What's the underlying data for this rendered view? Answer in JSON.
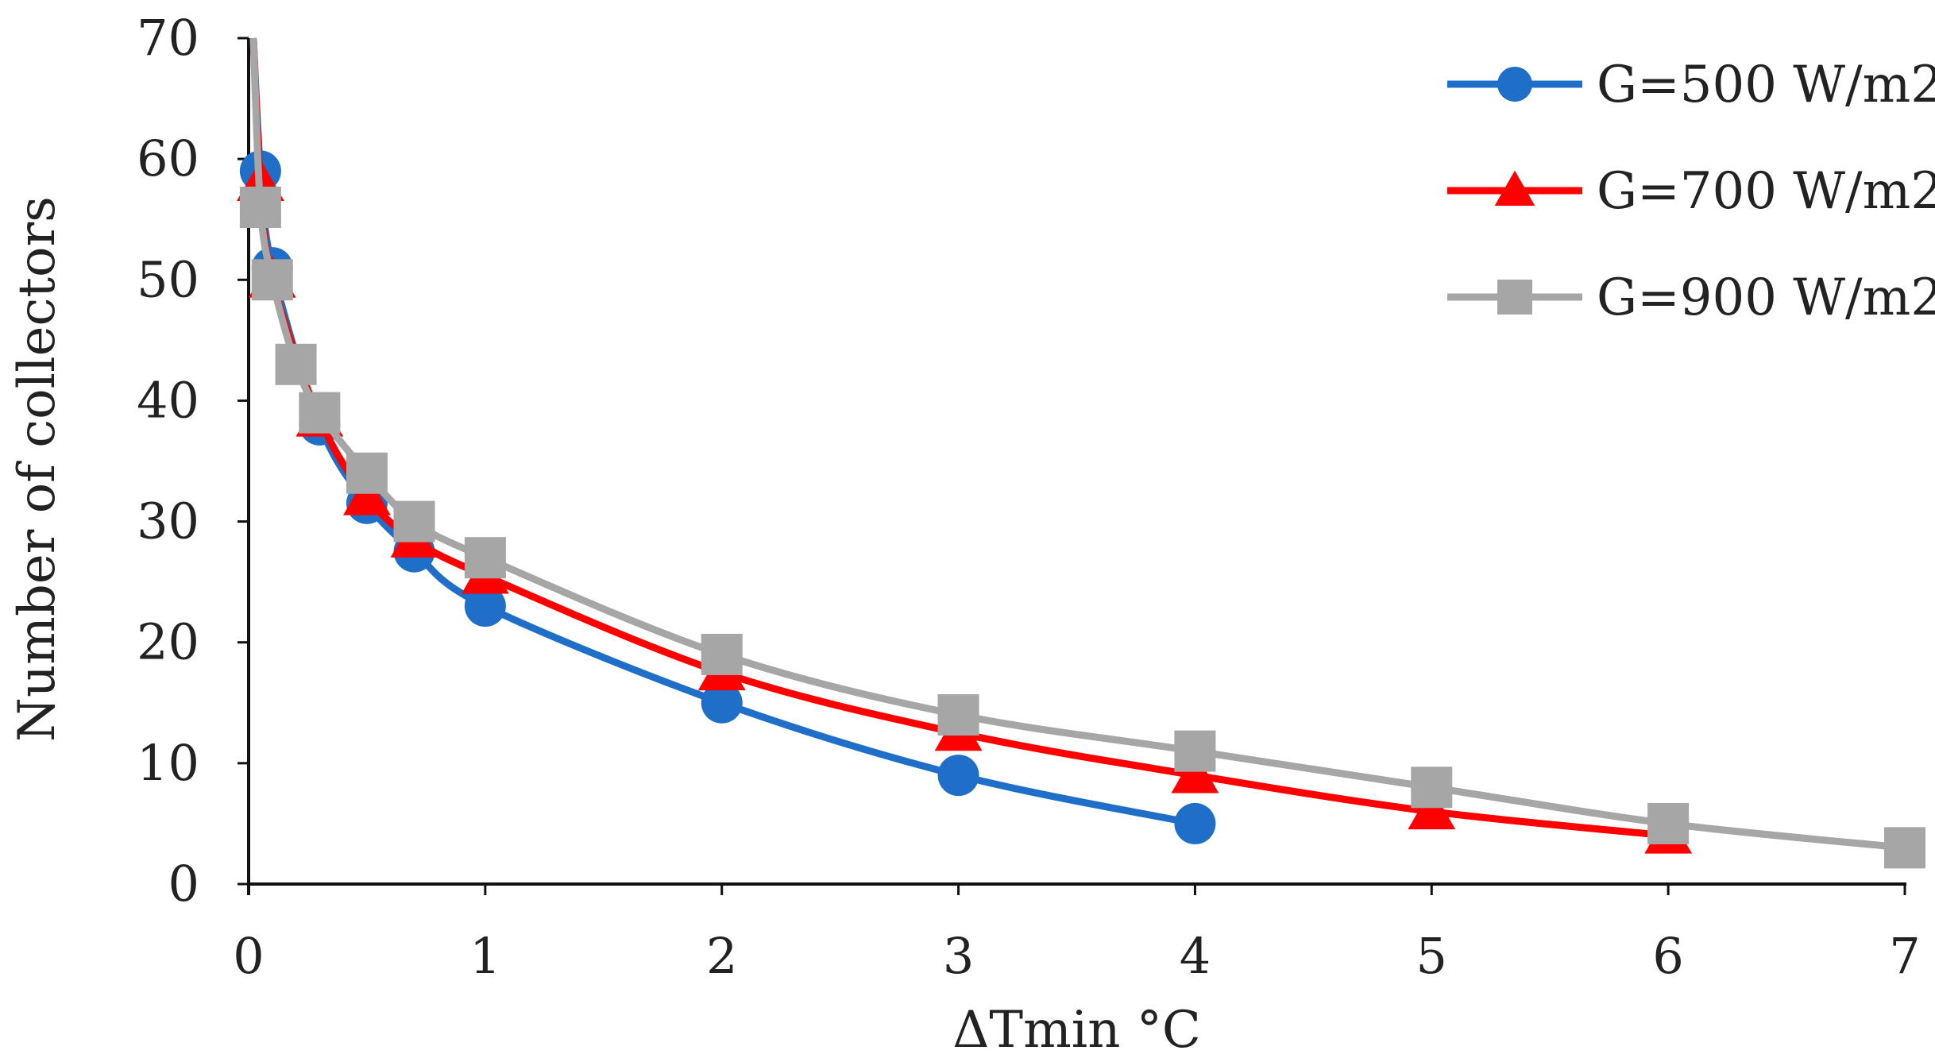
{
  "chart_data": {
    "type": "line",
    "title": "",
    "xlabel": "ΔTmin °C",
    "ylabel": "Number of collectors",
    "xlim": [
      0,
      7
    ],
    "ylim": [
      0,
      70
    ],
    "xticks": [
      0,
      1,
      2,
      3,
      4,
      5,
      6,
      7
    ],
    "yticks": [
      0,
      10,
      20,
      30,
      40,
      50,
      60,
      70
    ],
    "grid": false,
    "legend_position": "top-right",
    "series": [
      {
        "name": "G=500 W/m2",
        "color": "#1f6fc8",
        "marker": "circle",
        "x": [
          0.05,
          0.1,
          0.3,
          0.5,
          0.7,
          1,
          2,
          3,
          4
        ],
        "y": [
          59,
          51,
          38,
          31.5,
          27.5,
          23,
          15,
          9,
          5
        ]
      },
      {
        "name": "G=700 W/m2",
        "color": "#ff0000",
        "marker": "triangle",
        "x": [
          0.05,
          0.1,
          0.3,
          0.5,
          0.7,
          1,
          2,
          3,
          4,
          5,
          6
        ],
        "y": [
          58,
          50,
          38.5,
          32,
          28.5,
          25.5,
          17.5,
          12.5,
          9,
          6,
          4
        ]
      },
      {
        "name": "G=900 W/m2",
        "color": "#a6a6a6",
        "marker": "square",
        "x": [
          0.05,
          0.1,
          0.2,
          0.3,
          0.5,
          0.7,
          1,
          2,
          3,
          4,
          5,
          6,
          7
        ],
        "y": [
          56,
          50,
          43,
          39,
          34,
          30,
          27,
          19,
          14,
          11,
          8,
          5,
          3
        ]
      }
    ]
  }
}
